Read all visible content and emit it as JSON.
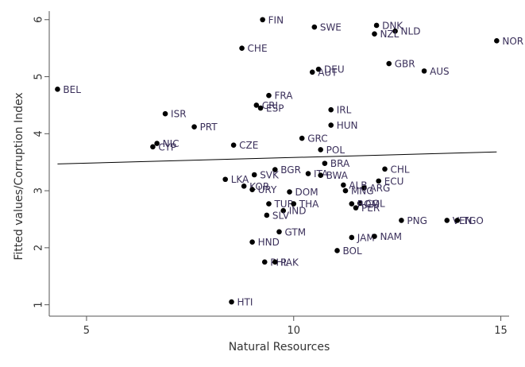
{
  "chart_data": {
    "type": "scatter",
    "title": "",
    "xlabel": "Natural Resources",
    "ylabel": "Fitted values/Corruption Index",
    "xlim": [
      4.1,
      15.2
    ],
    "ylim": [
      0.8,
      6.15
    ],
    "xticks": [
      5,
      10,
      15
    ],
    "yticks": [
      1,
      2,
      3,
      4,
      5,
      6
    ],
    "grid": false,
    "legend": "none",
    "colors": {
      "point": "#000000",
      "label": "#3a2f5a",
      "line": "#000000",
      "axis": "#555555"
    },
    "fitted_line": {
      "x": [
        4.3,
        14.9
      ],
      "y": [
        3.47,
        3.68
      ]
    },
    "points": [
      {
        "label": "FIN",
        "x": 9.25,
        "y": 6.0
      },
      {
        "label": "SWE",
        "x": 10.5,
        "y": 5.87
      },
      {
        "label": "DNK",
        "x": 12.0,
        "y": 5.9
      },
      {
        "label": "NLD",
        "x": 12.45,
        "y": 5.8
      },
      {
        "label": "NZL",
        "x": 11.95,
        "y": 5.75
      },
      {
        "label": "NOR",
        "x": 14.9,
        "y": 5.63
      },
      {
        "label": "CHE",
        "x": 8.75,
        "y": 5.5
      },
      {
        "label": "GBR",
        "x": 12.3,
        "y": 5.23
      },
      {
        "label": "DEU",
        "x": 10.6,
        "y": 5.13
      },
      {
        "label": "AUT",
        "x": 10.45,
        "y": 5.08
      },
      {
        "label": "AUS",
        "x": 13.15,
        "y": 5.1
      },
      {
        "label": "BEL",
        "x": 4.3,
        "y": 4.78
      },
      {
        "label": "FRA",
        "x": 9.4,
        "y": 4.67
      },
      {
        "label": "CRI",
        "x": 9.1,
        "y": 4.5
      },
      {
        "label": "ESP",
        "x": 9.2,
        "y": 4.45
      },
      {
        "label": "IRL",
        "x": 10.9,
        "y": 4.42
      },
      {
        "label": "ISR",
        "x": 6.9,
        "y": 4.35
      },
      {
        "label": "HUN",
        "x": 10.9,
        "y": 4.15
      },
      {
        "label": "PRT",
        "x": 7.6,
        "y": 4.12
      },
      {
        "label": "GRC",
        "x": 10.2,
        "y": 3.92
      },
      {
        "label": "NIC",
        "x": 6.7,
        "y": 3.83
      },
      {
        "label": "CYP",
        "x": 6.6,
        "y": 3.77
      },
      {
        "label": "CZE",
        "x": 8.55,
        "y": 3.8
      },
      {
        "label": "POL",
        "x": 10.65,
        "y": 3.72
      },
      {
        "label": "BRA",
        "x": 10.75,
        "y": 3.48
      },
      {
        "label": "BGR",
        "x": 9.55,
        "y": 3.37
      },
      {
        "label": "CHL",
        "x": 12.2,
        "y": 3.38
      },
      {
        "label": "SVK",
        "x": 9.05,
        "y": 3.28
      },
      {
        "label": "ITA",
        "x": 10.35,
        "y": 3.3
      },
      {
        "label": "BWA",
        "x": 10.65,
        "y": 3.27
      },
      {
        "label": "LKA",
        "x": 8.35,
        "y": 3.2
      },
      {
        "label": "ECU",
        "x": 12.05,
        "y": 3.17
      },
      {
        "label": "KOR",
        "x": 8.8,
        "y": 3.08
      },
      {
        "label": "ALB",
        "x": 11.2,
        "y": 3.1
      },
      {
        "label": "ARG",
        "x": 11.7,
        "y": 3.05
      },
      {
        "label": "URY",
        "x": 9.0,
        "y": 3.02
      },
      {
        "label": "MNG",
        "x": 11.25,
        "y": 3.0
      },
      {
        "label": "DOM",
        "x": 9.9,
        "y": 2.98
      },
      {
        "label": "COL",
        "x": 11.6,
        "y": 2.78
      },
      {
        "label": "ROM",
        "x": 11.4,
        "y": 2.77
      },
      {
        "label": "PER",
        "x": 11.5,
        "y": 2.7
      },
      {
        "label": "TUR",
        "x": 9.4,
        "y": 2.77
      },
      {
        "label": "THA",
        "x": 10.0,
        "y": 2.77
      },
      {
        "label": "IND",
        "x": 9.75,
        "y": 2.65
      },
      {
        "label": "SLV",
        "x": 9.35,
        "y": 2.57
      },
      {
        "label": "PNG",
        "x": 12.6,
        "y": 2.48
      },
      {
        "label": "VEN",
        "x": 13.7,
        "y": 2.48
      },
      {
        "label": "TGO",
        "x": 13.95,
        "y": 2.48
      },
      {
        "label": "GTM",
        "x": 9.65,
        "y": 2.28
      },
      {
        "label": "JAM",
        "x": 11.4,
        "y": 2.18
      },
      {
        "label": "NAM",
        "x": 11.95,
        "y": 2.2
      },
      {
        "label": "HND",
        "x": 9.0,
        "y": 2.1
      },
      {
        "label": "BOL",
        "x": 11.05,
        "y": 1.95
      },
      {
        "label": "PHL",
        "x": 9.3,
        "y": 1.75
      },
      {
        "label": "PAK",
        "x": 9.55,
        "y": 1.75
      },
      {
        "label": "HTI",
        "x": 8.5,
        "y": 1.05
      }
    ]
  }
}
